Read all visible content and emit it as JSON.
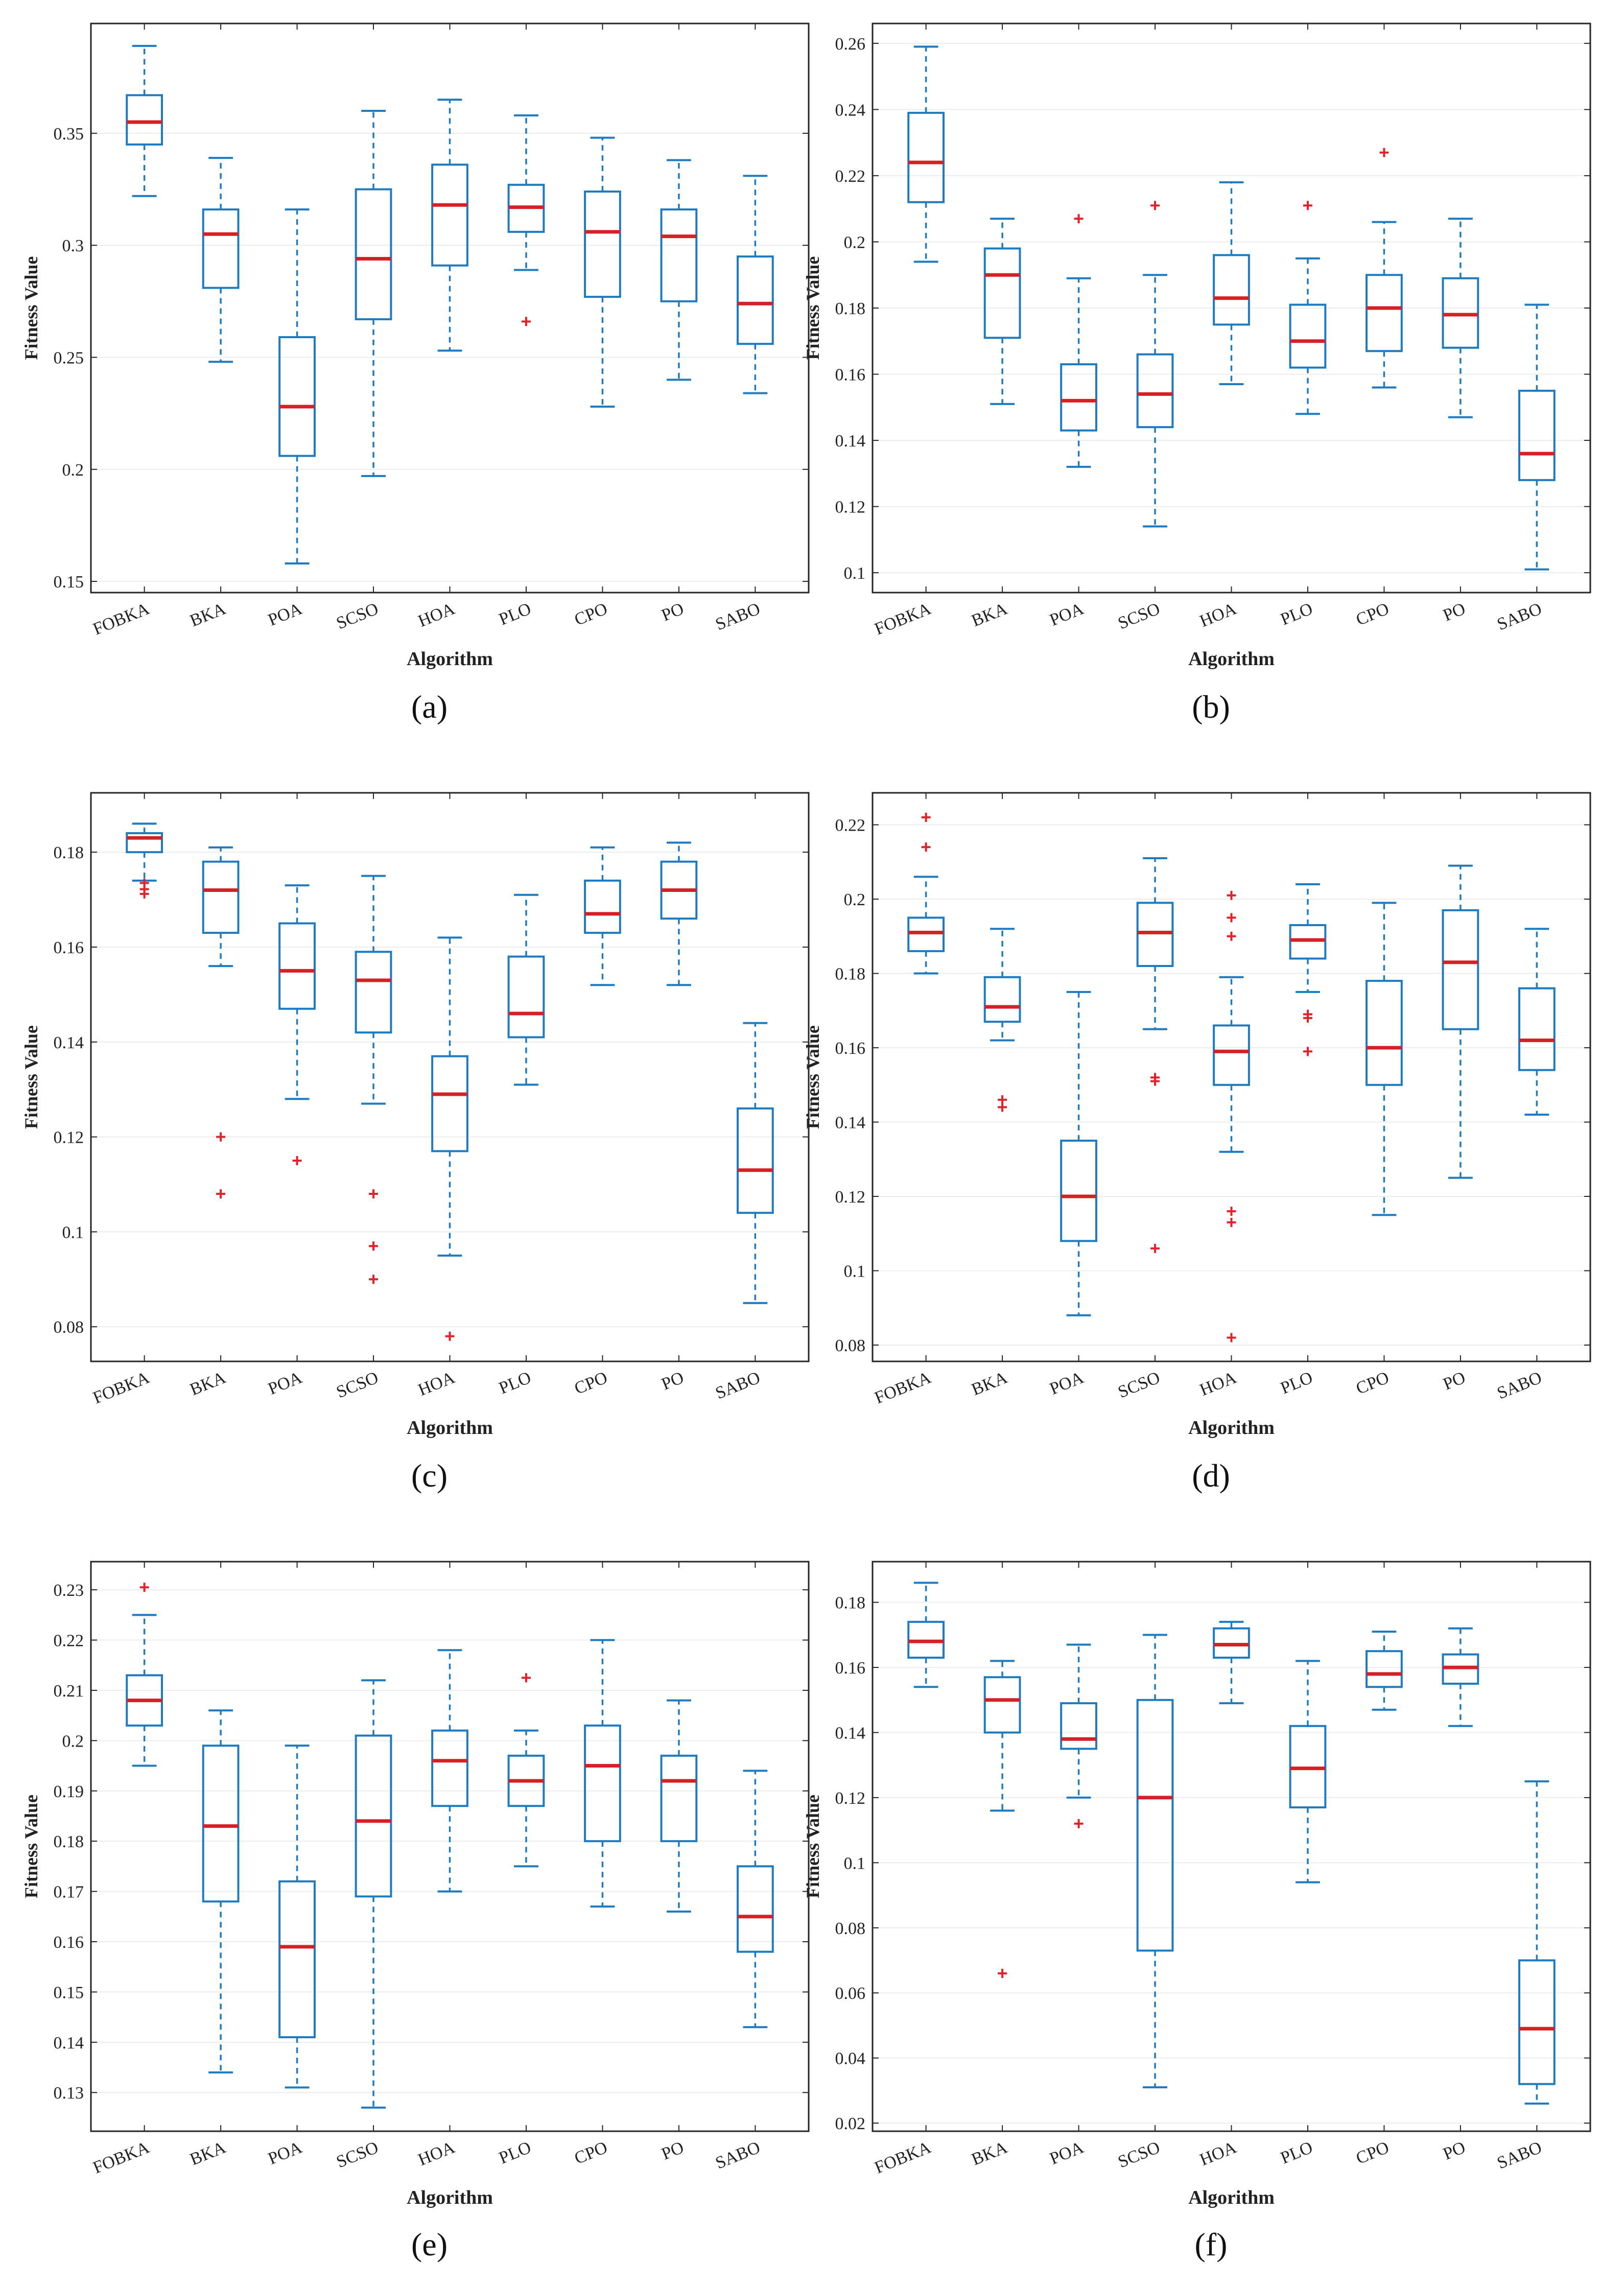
{
  "colors": {
    "box": "#1f7bc0",
    "median": "#d62027",
    "outlier": "#e0232a",
    "grid": "#ececec",
    "axis": "#262626"
  },
  "chart_data": [
    {
      "type": "box",
      "panel_label": "(a)",
      "xlabel": "Algorithm",
      "ylabel": "Fitness Value",
      "categories": [
        "FOBKA",
        "BKA",
        "POA",
        "SCSO",
        "HOA",
        "PLO",
        "CPO",
        "PO",
        "SABO"
      ],
      "ylim": [
        0.145,
        0.399
      ],
      "yticks": [
        0.15,
        0.2,
        0.25,
        0.3,
        0.35
      ],
      "ytick_labels": [
        "0.15",
        "0.2",
        "0.25",
        "0.3",
        "0.35"
      ],
      "series": [
        {
          "name": "FOBKA",
          "whisker_low": 0.322,
          "q1": 0.345,
          "median": 0.355,
          "q3": 0.367,
          "whisker_high": 0.389,
          "outliers": []
        },
        {
          "name": "BKA",
          "whisker_low": 0.248,
          "q1": 0.281,
          "median": 0.305,
          "q3": 0.316,
          "whisker_high": 0.339,
          "outliers": []
        },
        {
          "name": "POA",
          "whisker_low": 0.158,
          "q1": 0.206,
          "median": 0.228,
          "q3": 0.259,
          "whisker_high": 0.316,
          "outliers": []
        },
        {
          "name": "SCSO",
          "whisker_low": 0.197,
          "q1": 0.267,
          "median": 0.294,
          "q3": 0.325,
          "whisker_high": 0.36,
          "outliers": []
        },
        {
          "name": "HOA",
          "whisker_low": 0.253,
          "q1": 0.291,
          "median": 0.318,
          "q3": 0.336,
          "whisker_high": 0.365,
          "outliers": []
        },
        {
          "name": "PLO",
          "whisker_low": 0.289,
          "q1": 0.306,
          "median": 0.317,
          "q3": 0.327,
          "whisker_high": 0.358,
          "outliers": [
            0.266
          ]
        },
        {
          "name": "CPO",
          "whisker_low": 0.228,
          "q1": 0.277,
          "median": 0.306,
          "q3": 0.324,
          "whisker_high": 0.348,
          "outliers": []
        },
        {
          "name": "PO",
          "whisker_low": 0.24,
          "q1": 0.275,
          "median": 0.304,
          "q3": 0.316,
          "whisker_high": 0.338,
          "outliers": []
        },
        {
          "name": "SABO",
          "whisker_low": 0.234,
          "q1": 0.256,
          "median": 0.274,
          "q3": 0.295,
          "whisker_high": 0.331,
          "outliers": []
        }
      ]
    },
    {
      "type": "box",
      "panel_label": "(b)",
      "xlabel": "Algorithm",
      "ylabel": "Fitness Value",
      "categories": [
        "FOBKA",
        "BKA",
        "POA",
        "SCSO",
        "HOA",
        "PLO",
        "CPO",
        "PO",
        "SABO"
      ],
      "ylim": [
        0.094,
        0.266
      ],
      "yticks": [
        0.1,
        0.12,
        0.14,
        0.16,
        0.18,
        0.2,
        0.22,
        0.24,
        0.26
      ],
      "ytick_labels": [
        "0.1",
        "0.12",
        "0.14",
        "0.16",
        "0.18",
        "0.2",
        "0.22",
        "0.24",
        "0.26"
      ],
      "series": [
        {
          "name": "FOBKA",
          "whisker_low": 0.194,
          "q1": 0.212,
          "median": 0.224,
          "q3": 0.239,
          "whisker_high": 0.259,
          "outliers": []
        },
        {
          "name": "BKA",
          "whisker_low": 0.151,
          "q1": 0.171,
          "median": 0.19,
          "q3": 0.198,
          "whisker_high": 0.207,
          "outliers": []
        },
        {
          "name": "POA",
          "whisker_low": 0.132,
          "q1": 0.143,
          "median": 0.152,
          "q3": 0.163,
          "whisker_high": 0.189,
          "outliers": [
            0.207
          ]
        },
        {
          "name": "SCSO",
          "whisker_low": 0.114,
          "q1": 0.144,
          "median": 0.154,
          "q3": 0.166,
          "whisker_high": 0.19,
          "outliers": [
            0.211
          ]
        },
        {
          "name": "HOA",
          "whisker_low": 0.157,
          "q1": 0.175,
          "median": 0.183,
          "q3": 0.196,
          "whisker_high": 0.218,
          "outliers": []
        },
        {
          "name": "PLO",
          "whisker_low": 0.148,
          "q1": 0.162,
          "median": 0.17,
          "q3": 0.181,
          "whisker_high": 0.195,
          "outliers": [
            0.211
          ]
        },
        {
          "name": "CPO",
          "whisker_low": 0.156,
          "q1": 0.167,
          "median": 0.18,
          "q3": 0.19,
          "whisker_high": 0.206,
          "outliers": [
            0.227
          ]
        },
        {
          "name": "PO",
          "whisker_low": 0.147,
          "q1": 0.168,
          "median": 0.178,
          "q3": 0.189,
          "whisker_high": 0.207,
          "outliers": []
        },
        {
          "name": "SABO",
          "whisker_low": 0.101,
          "q1": 0.128,
          "median": 0.136,
          "q3": 0.155,
          "whisker_high": 0.181,
          "outliers": []
        }
      ]
    },
    {
      "type": "box",
      "panel_label": "(c)",
      "xlabel": "Algorithm",
      "ylabel": "Fitness Value",
      "categories": [
        "FOBKA",
        "BKA",
        "POA",
        "SCSO",
        "HOA",
        "PLO",
        "CPO",
        "PO",
        "SABO"
      ],
      "ylim": [
        0.0727,
        0.1925
      ],
      "yticks": [
        0.08,
        0.1,
        0.12,
        0.14,
        0.16,
        0.18
      ],
      "ytick_labels": [
        "0.08",
        "0.1",
        "0.12",
        "0.14",
        "0.16",
        "0.18"
      ],
      "series": [
        {
          "name": "FOBKA",
          "whisker_low": 0.174,
          "q1": 0.18,
          "median": 0.183,
          "q3": 0.184,
          "whisker_high": 0.186,
          "outliers": [
            0.1735,
            0.1722,
            0.1712
          ]
        },
        {
          "name": "BKA",
          "whisker_low": 0.156,
          "q1": 0.163,
          "median": 0.172,
          "q3": 0.178,
          "whisker_high": 0.181,
          "outliers": [
            0.12,
            0.108
          ]
        },
        {
          "name": "POA",
          "whisker_low": 0.128,
          "q1": 0.147,
          "median": 0.155,
          "q3": 0.165,
          "whisker_high": 0.173,
          "outliers": [
            0.115
          ]
        },
        {
          "name": "SCSO",
          "whisker_low": 0.127,
          "q1": 0.142,
          "median": 0.153,
          "q3": 0.159,
          "whisker_high": 0.175,
          "outliers": [
            0.108,
            0.097,
            0.09
          ]
        },
        {
          "name": "HOA",
          "whisker_low": 0.095,
          "q1": 0.117,
          "median": 0.129,
          "q3": 0.137,
          "whisker_high": 0.162,
          "outliers": [
            0.078
          ]
        },
        {
          "name": "PLO",
          "whisker_low": 0.131,
          "q1": 0.141,
          "median": 0.146,
          "q3": 0.158,
          "whisker_high": 0.171,
          "outliers": []
        },
        {
          "name": "CPO",
          "whisker_low": 0.152,
          "q1": 0.163,
          "median": 0.167,
          "q3": 0.174,
          "whisker_high": 0.181,
          "outliers": []
        },
        {
          "name": "PO",
          "whisker_low": 0.152,
          "q1": 0.166,
          "median": 0.172,
          "q3": 0.178,
          "whisker_high": 0.182,
          "outliers": []
        },
        {
          "name": "SABO",
          "whisker_low": 0.085,
          "q1": 0.104,
          "median": 0.113,
          "q3": 0.126,
          "whisker_high": 0.144,
          "outliers": []
        }
      ]
    },
    {
      "type": "box",
      "panel_label": "(d)",
      "xlabel": "Algorithm",
      "ylabel": "Fitness Value",
      "categories": [
        "FOBKA",
        "BKA",
        "POA",
        "SCSO",
        "HOA",
        "PLO",
        "CPO",
        "PO",
        "SABO"
      ],
      "ylim": [
        0.0756,
        0.2286
      ],
      "yticks": [
        0.08,
        0.1,
        0.12,
        0.14,
        0.16,
        0.18,
        0.2,
        0.22
      ],
      "ytick_labels": [
        "0.08",
        "0.1",
        "0.12",
        "0.14",
        "0.16",
        "0.18",
        "0.2",
        "0.22"
      ],
      "series": [
        {
          "name": "FOBKA",
          "whisker_low": 0.18,
          "q1": 0.186,
          "median": 0.191,
          "q3": 0.195,
          "whisker_high": 0.206,
          "outliers": [
            0.222,
            0.214
          ]
        },
        {
          "name": "BKA",
          "whisker_low": 0.162,
          "q1": 0.167,
          "median": 0.171,
          "q3": 0.179,
          "whisker_high": 0.192,
          "outliers": [
            0.146,
            0.144
          ]
        },
        {
          "name": "POA",
          "whisker_low": 0.088,
          "q1": 0.108,
          "median": 0.12,
          "q3": 0.135,
          "whisker_high": 0.175,
          "outliers": []
        },
        {
          "name": "SCSO",
          "whisker_low": 0.165,
          "q1": 0.182,
          "median": 0.191,
          "q3": 0.199,
          "whisker_high": 0.211,
          "outliers": [
            0.152,
            0.151,
            0.106
          ]
        },
        {
          "name": "HOA",
          "whisker_low": 0.132,
          "q1": 0.15,
          "median": 0.159,
          "q3": 0.166,
          "whisker_high": 0.179,
          "outliers": [
            0.201,
            0.195,
            0.19,
            0.116,
            0.113,
            0.082
          ]
        },
        {
          "name": "PLO",
          "whisker_low": 0.175,
          "q1": 0.184,
          "median": 0.189,
          "q3": 0.193,
          "whisker_high": 0.204,
          "outliers": [
            0.169,
            0.168,
            0.159
          ]
        },
        {
          "name": "CPO",
          "whisker_low": 0.115,
          "q1": 0.15,
          "median": 0.16,
          "q3": 0.178,
          "whisker_high": 0.199,
          "outliers": []
        },
        {
          "name": "PO",
          "whisker_low": 0.125,
          "q1": 0.165,
          "median": 0.183,
          "q3": 0.197,
          "whisker_high": 0.209,
          "outliers": []
        },
        {
          "name": "SABO",
          "whisker_low": 0.142,
          "q1": 0.154,
          "median": 0.162,
          "q3": 0.176,
          "whisker_high": 0.192,
          "outliers": []
        }
      ]
    },
    {
      "type": "box",
      "panel_label": "(e)",
      "xlabel": "Algorithm",
      "ylabel": "Fitness Value",
      "categories": [
        "FOBKA",
        "BKA",
        "POA",
        "SCSO",
        "HOA",
        "PLO",
        "CPO",
        "PO",
        "SABO"
      ],
      "ylim": [
        0.1223,
        0.2356
      ],
      "yticks": [
        0.13,
        0.14,
        0.15,
        0.16,
        0.17,
        0.18,
        0.19,
        0.2,
        0.21,
        0.22,
        0.23
      ],
      "ytick_labels": [
        "0.13",
        "0.14",
        "0.15",
        "0.16",
        "0.17",
        "0.18",
        "0.19",
        "0.2",
        "0.21",
        "0.22",
        "0.23"
      ],
      "series": [
        {
          "name": "FOBKA",
          "whisker_low": 0.195,
          "q1": 0.203,
          "median": 0.208,
          "q3": 0.213,
          "whisker_high": 0.225,
          "outliers": [
            0.2305
          ]
        },
        {
          "name": "BKA",
          "whisker_low": 0.134,
          "q1": 0.168,
          "median": 0.183,
          "q3": 0.199,
          "whisker_high": 0.206,
          "outliers": []
        },
        {
          "name": "POA",
          "whisker_low": 0.131,
          "q1": 0.141,
          "median": 0.159,
          "q3": 0.172,
          "whisker_high": 0.199,
          "outliers": []
        },
        {
          "name": "SCSO",
          "whisker_low": 0.127,
          "q1": 0.169,
          "median": 0.184,
          "q3": 0.201,
          "whisker_high": 0.212,
          "outliers": []
        },
        {
          "name": "HOA",
          "whisker_low": 0.17,
          "q1": 0.187,
          "median": 0.196,
          "q3": 0.202,
          "whisker_high": 0.218,
          "outliers": []
        },
        {
          "name": "PLO",
          "whisker_low": 0.175,
          "q1": 0.187,
          "median": 0.192,
          "q3": 0.197,
          "whisker_high": 0.202,
          "outliers": [
            0.2125
          ]
        },
        {
          "name": "CPO",
          "whisker_low": 0.167,
          "q1": 0.18,
          "median": 0.195,
          "q3": 0.203,
          "whisker_high": 0.22,
          "outliers": []
        },
        {
          "name": "PO",
          "whisker_low": 0.166,
          "q1": 0.18,
          "median": 0.192,
          "q3": 0.197,
          "whisker_high": 0.208,
          "outliers": []
        },
        {
          "name": "SABO",
          "whisker_low": 0.143,
          "q1": 0.158,
          "median": 0.165,
          "q3": 0.175,
          "whisker_high": 0.194,
          "outliers": []
        }
      ]
    },
    {
      "type": "box",
      "panel_label": "(f)",
      "xlabel": "Algorithm",
      "ylabel": "Fitness Value",
      "categories": [
        "FOBKA",
        "BKA",
        "POA",
        "SCSO",
        "HOA",
        "PLO",
        "CPO",
        "PO",
        "SABO"
      ],
      "ylim": [
        0.0175,
        0.1925
      ],
      "yticks": [
        0.02,
        0.04,
        0.06,
        0.08,
        0.1,
        0.12,
        0.14,
        0.16,
        0.18
      ],
      "ytick_labels": [
        "0.02",
        "0.04",
        "0.06",
        "0.08",
        "0.1",
        "0.12",
        "0.14",
        "0.16",
        "0.18"
      ],
      "series": [
        {
          "name": "FOBKA",
          "whisker_low": 0.154,
          "q1": 0.163,
          "median": 0.168,
          "q3": 0.174,
          "whisker_high": 0.186,
          "outliers": []
        },
        {
          "name": "BKA",
          "whisker_low": 0.116,
          "q1": 0.14,
          "median": 0.15,
          "q3": 0.157,
          "whisker_high": 0.162,
          "outliers": [
            0.066
          ]
        },
        {
          "name": "POA",
          "whisker_low": 0.12,
          "q1": 0.135,
          "median": 0.138,
          "q3": 0.149,
          "whisker_high": 0.167,
          "outliers": [
            0.112
          ]
        },
        {
          "name": "SCSO",
          "whisker_low": 0.031,
          "q1": 0.073,
          "median": 0.12,
          "q3": 0.15,
          "whisker_high": 0.17,
          "outliers": []
        },
        {
          "name": "HOA",
          "whisker_low": 0.149,
          "q1": 0.163,
          "median": 0.167,
          "q3": 0.172,
          "whisker_high": 0.174,
          "outliers": []
        },
        {
          "name": "PLO",
          "whisker_low": 0.094,
          "q1": 0.117,
          "median": 0.129,
          "q3": 0.142,
          "whisker_high": 0.162,
          "outliers": []
        },
        {
          "name": "CPO",
          "whisker_low": 0.147,
          "q1": 0.154,
          "median": 0.158,
          "q3": 0.165,
          "whisker_high": 0.171,
          "outliers": []
        },
        {
          "name": "PO",
          "whisker_low": 0.142,
          "q1": 0.155,
          "median": 0.16,
          "q3": 0.164,
          "whisker_high": 0.172,
          "outliers": []
        },
        {
          "name": "SABO",
          "whisker_low": 0.026,
          "q1": 0.032,
          "median": 0.049,
          "q3": 0.07,
          "whisker_high": 0.125,
          "outliers": []
        }
      ]
    }
  ]
}
